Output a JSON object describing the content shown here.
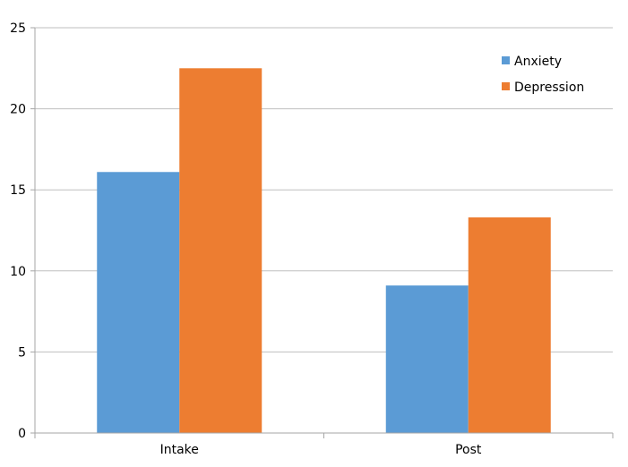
{
  "chart_data": {
    "type": "bar",
    "title": "",
    "xlabel": "",
    "ylabel": "",
    "categories": [
      "Intake",
      "Post"
    ],
    "series": [
      {
        "name": "Anxiety",
        "values": [
          16.1,
          9.1
        ],
        "color": "#5b9bd5"
      },
      {
        "name": "Depression",
        "values": [
          22.5,
          13.3
        ],
        "color": "#ed7d31"
      }
    ],
    "ylim": [
      0,
      25
    ],
    "yticks": [
      "0",
      "5",
      "10",
      "15",
      "20",
      "25"
    ],
    "grid": true,
    "legend": "top-right"
  }
}
